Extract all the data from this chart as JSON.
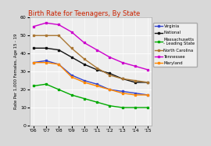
{
  "title": "Birth Rate for Teenagers, By State",
  "title_color": "#cc2200",
  "ylabel": "Rate Per 1,000 Females, Age 15 - 19",
  "years": [
    "'06",
    "'07",
    "'08",
    "'09",
    "'10",
    "'11",
    "'12",
    "'13",
    "'14",
    "'15"
  ],
  "series": {
    "Virginia": [
      35,
      36,
      34,
      28,
      25,
      23,
      20,
      19,
      18,
      17
    ],
    "National": [
      43,
      43,
      42,
      38,
      34,
      31,
      29,
      26,
      24,
      24
    ],
    "Massachusetts\n- Leading State": [
      22,
      23,
      20,
      17,
      15,
      13,
      11,
      10,
      10,
      10
    ],
    "North Carolina": [
      50,
      50,
      50,
      43,
      37,
      32,
      28,
      26,
      25,
      24
    ],
    "Tennessee": [
      55,
      57,
      56,
      52,
      46,
      42,
      38,
      35,
      33,
      31
    ],
    "Maryland": [
      35,
      35,
      34,
      27,
      24,
      22,
      20,
      18,
      17,
      17
    ]
  },
  "colors": {
    "Virginia": "#3344cc",
    "National": "#111111",
    "Massachusetts\n- Leading State": "#00aa00",
    "North Carolina": "#aa7733",
    "Tennessee": "#cc00cc",
    "Maryland": "#ff8800"
  },
  "ylim": [
    0,
    60
  ],
  "yticks": [
    0,
    10,
    20,
    30,
    40,
    50,
    60
  ],
  "background_color": "#d8d8d8",
  "plot_background_color": "#eeeeee"
}
